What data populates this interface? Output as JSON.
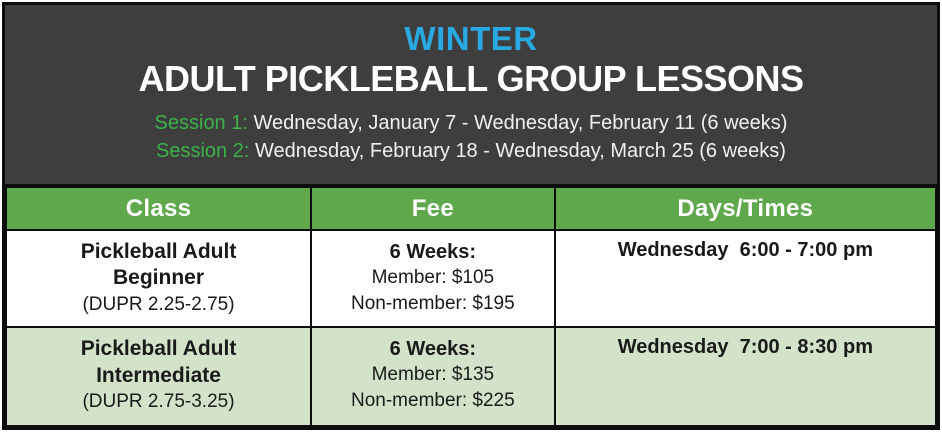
{
  "header": {
    "season": "WINTER",
    "title": "ADULT PICKLEBALL GROUP LESSONS",
    "sessions": [
      {
        "label": "Session 1:",
        "text": "Wednesday, January 7 - Wednesday, February 11 (6 weeks)"
      },
      {
        "label": "Session 2:",
        "text": "Wednesday, February 18 - Wednesday, March 25 (6 weeks)"
      }
    ]
  },
  "table": {
    "columns": [
      "Class",
      "Fee",
      "Days/Times"
    ],
    "rows": [
      {
        "class_name": "Pickleball Adult Beginner",
        "dupr": "(DUPR 2.25-2.75)",
        "fee_duration": "6 Weeks:",
        "fee_member": "Member: $105",
        "fee_nonmember": "Non-member: $195",
        "days_times": "Wednesday  6:00 - 7:00 pm"
      },
      {
        "class_name": "Pickleball Adult Intermediate",
        "dupr": "(DUPR 2.75-3.25)",
        "fee_duration": "6 Weeks:",
        "fee_member": "Member: $135",
        "fee_nonmember": "Non-member: $225",
        "days_times": "Wednesday  7:00 - 8:30 pm"
      }
    ]
  },
  "colors": {
    "header_bg": "#3e3e3e",
    "season_blue": "#29a9e1",
    "session_green": "#3cb24a",
    "table_header_green": "#5fa84c",
    "row_alt_green": "#d3e3c9",
    "border_black": "#0d0d0d"
  }
}
